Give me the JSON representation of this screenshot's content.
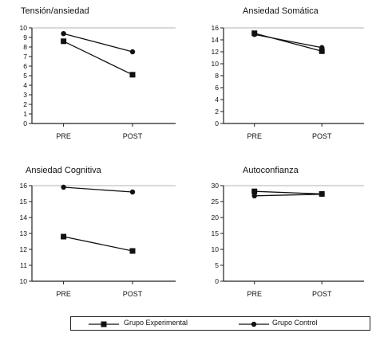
{
  "chart_data": [
    {
      "type": "line",
      "title": "Tensión/ansiedad",
      "categories": [
        "PRE",
        "POST"
      ],
      "ylim": [
        0,
        10
      ],
      "yticks": [
        0,
        1,
        2,
        3,
        4,
        5,
        6,
        7,
        8,
        9,
        10
      ],
      "series": [
        {
          "name": "Grupo Experimental",
          "marker": "square",
          "values": [
            8.6,
            5.1
          ]
        },
        {
          "name": "Grupo Control",
          "marker": "circle",
          "values": [
            9.4,
            7.5
          ]
        }
      ]
    },
    {
      "type": "line",
      "title": "Ansiedad Somática",
      "categories": [
        "PRE",
        "POST"
      ],
      "ylim": [
        0,
        16
      ],
      "yticks": [
        0,
        2,
        4,
        6,
        8,
        10,
        12,
        14,
        16
      ],
      "series": [
        {
          "name": "Grupo Experimental",
          "marker": "square",
          "values": [
            15.1,
            12.1
          ]
        },
        {
          "name": "Grupo Control",
          "marker": "circle",
          "values": [
            14.9,
            12.7
          ]
        }
      ]
    },
    {
      "type": "line",
      "title": "Ansiedad Cognitiva",
      "categories": [
        "PRE",
        "POST"
      ],
      "ylim": [
        10,
        16
      ],
      "yticks": [
        10,
        11,
        12,
        13,
        14,
        15,
        16
      ],
      "series": [
        {
          "name": "Grupo Experimental",
          "marker": "square",
          "values": [
            12.8,
            11.9
          ]
        },
        {
          "name": "Grupo Control",
          "marker": "circle",
          "values": [
            15.9,
            15.6
          ]
        }
      ]
    },
    {
      "type": "line",
      "title": "Autoconfianza",
      "categories": [
        "PRE",
        "POST"
      ],
      "ylim": [
        0,
        30
      ],
      "yticks": [
        0,
        5,
        10,
        15,
        20,
        25,
        30
      ],
      "series": [
        {
          "name": "Grupo Experimental",
          "marker": "square",
          "values": [
            28.2,
            27.4
          ]
        },
        {
          "name": "Grupo Control",
          "marker": "circle",
          "values": [
            26.8,
            27.3
          ]
        }
      ]
    }
  ],
  "legend": [
    {
      "label": "Grupo Experimental",
      "marker": "square"
    },
    {
      "label": "Grupo Control",
      "marker": "circle"
    }
  ],
  "colors": {
    "line": "#111111",
    "axis": "#222222",
    "grid": "#999999"
  }
}
